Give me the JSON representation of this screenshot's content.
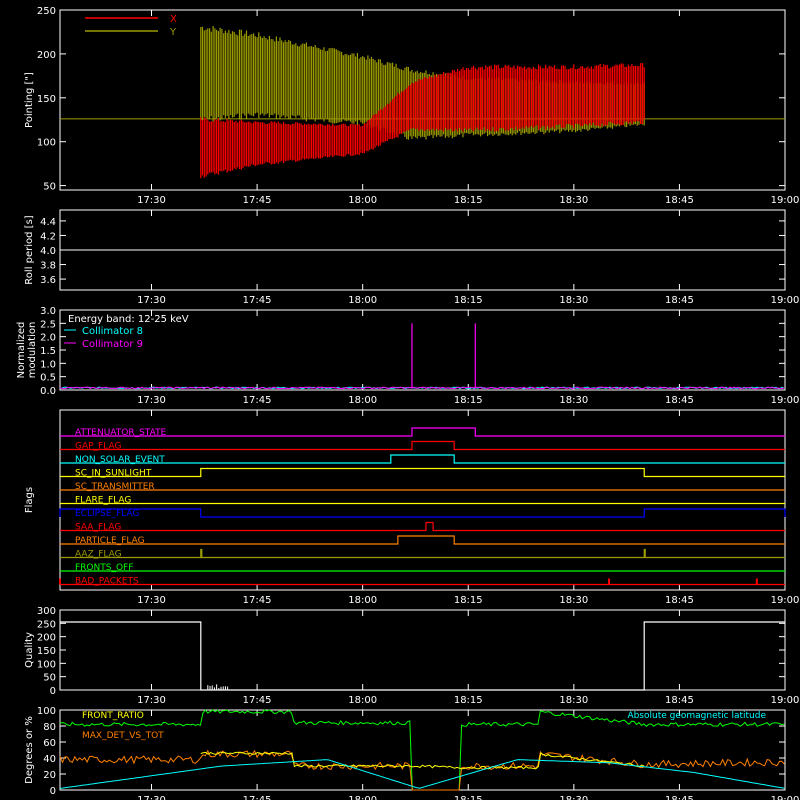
{
  "time_ticks": [
    "17:30",
    "17:45",
    "18:00",
    "18:15",
    "18:30",
    "18:45",
    "19:00"
  ],
  "chart_data": [
    {
      "type": "line",
      "ylabel": "Pointing [\"]",
      "ylim": [
        45,
        250
      ],
      "yticks": [
        "50",
        "100",
        "150",
        "200",
        "250"
      ],
      "x": [
        "17:17",
        "17:37",
        "17:45",
        "18:00",
        "18:07",
        "18:15",
        "18:30",
        "18:40",
        "19:00"
      ],
      "series": [
        {
          "name": "X",
          "color": "#ff0000",
          "min": [
            null,
            58,
            72,
            85,
            112,
            110,
            115,
            120,
            null
          ],
          "max": [
            null,
            128,
            124,
            120,
            170,
            188,
            188,
            190,
            null
          ],
          "baseline": 126
        },
        {
          "name": "Y",
          "color": "#9b9b00",
          "min": [
            null,
            120,
            127,
            118,
            100,
            105,
            110,
            118,
            null
          ],
          "max": [
            null,
            235,
            225,
            200,
            185,
            175,
            170,
            168,
            null
          ],
          "baseline": 126
        }
      ]
    },
    {
      "type": "line",
      "ylabel": "Roll period [s]",
      "ylim": [
        3.45,
        4.55
      ],
      "yticks": [
        "3.6",
        "3.8",
        "4.0",
        "4.2",
        "4.4"
      ],
      "series": [
        {
          "name": "",
          "color": "#ffffff",
          "value": 4.0
        }
      ]
    },
    {
      "type": "line",
      "ylabel_lines": [
        "Normalized",
        "modulation"
      ],
      "ylim": [
        0.0,
        3.0
      ],
      "yticks": [
        "0.0",
        "0.5",
        "1.0",
        "1.5",
        "2.0",
        "2.5",
        "3.0"
      ],
      "legend_title": "Energy band: 12-25 keV",
      "series": [
        {
          "name": "Collimator 8",
          "color": "#00ffff",
          "level": 0.05
        },
        {
          "name": "Collimator 9",
          "color": "#ff00ff",
          "level": 0.05,
          "spikes_x": [
            "18:07",
            "18:16"
          ],
          "spike_value": 2.5
        }
      ]
    },
    {
      "type": "line",
      "ylabel": "Flags",
      "flags": [
        {
          "name": "ATTENUATOR_STATE",
          "color": "#ff00ff",
          "high": [
            [
              "18:07",
              "18:16"
            ]
          ]
        },
        {
          "name": "GAP_FLAG",
          "color": "#ff0000",
          "high": [
            [
              "18:07",
              "18:13"
            ]
          ]
        },
        {
          "name": "NON_SOLAR_EVENT",
          "color": "#00ffff",
          "high": [
            [
              "18:04",
              "18:13"
            ]
          ]
        },
        {
          "name": "SC_IN_SUNLIGHT",
          "color": "#ffff00",
          "high": [
            [
              "17:37",
              "18:40"
            ]
          ]
        },
        {
          "name": "SC_TRANSMITTER",
          "color": "#ff8000",
          "high": []
        },
        {
          "name": "FLARE_FLAG",
          "color": "#ffff00",
          "high": []
        },
        {
          "name": "ECLIPSE_FLAG",
          "color": "#0000ff",
          "high": [
            [
              "17:17",
              "17:37"
            ],
            [
              "18:40",
              "19:00"
            ]
          ]
        },
        {
          "name": "SAA_FLAG",
          "color": "#ff0000",
          "high": [
            [
              "18:09",
              "18:10"
            ]
          ]
        },
        {
          "name": "PARTICLE_FLAG",
          "color": "#ff8000",
          "high": [
            [
              "18:05",
              "18:13"
            ]
          ]
        },
        {
          "name": "AAZ_FLAG",
          "color": "#9b9b00",
          "high": [
            [
              "17:37",
              "17:37"
            ],
            [
              "18:40",
              "18:40"
            ]
          ]
        },
        {
          "name": "FRONTS_OFF",
          "color": "#00ff00",
          "high": []
        },
        {
          "name": "BAD_PACKETS",
          "color": "#ff0000",
          "ticks_x": [
            "17:17",
            "18:35",
            "18:56"
          ]
        }
      ]
    },
    {
      "type": "line",
      "ylabel": "Quality",
      "ylim": [
        0,
        300
      ],
      "yticks": [
        "0",
        "50",
        "100",
        "150",
        "200",
        "250",
        "300"
      ],
      "x": [
        "17:17",
        "17:37",
        "17:37",
        "18:40",
        "18:40",
        "19:00"
      ],
      "values": [
        255,
        255,
        0,
        0,
        255,
        255
      ]
    },
    {
      "type": "line",
      "ylabel": "Degrees or %",
      "ylim": [
        0,
        100
      ],
      "yticks": [
        "0",
        "20",
        "40",
        "60",
        "80",
        "100"
      ],
      "legend_right": "Absolute geomagnetic latitude",
      "series": [
        {
          "name": "FRONT_RATIO",
          "color": "#00ff00",
          "x": [
            "17:17",
            "17:37",
            "17:37",
            "17:50",
            "17:50",
            "18:07",
            "18:07",
            "18:14",
            "18:14",
            "18:25",
            "18:25",
            "18:40",
            "19:00"
          ],
          "values": [
            82,
            82,
            98,
            98,
            84,
            84,
            0,
            0,
            82,
            82,
            98,
            82,
            82
          ]
        },
        {
          "name": "MAX_DET_VS_TOT",
          "color": "#ff8000",
          "x": [
            "17:17",
            "17:37",
            "17:37",
            "17:50",
            "17:50",
            "18:07",
            "18:07",
            "18:14",
            "18:14",
            "18:25",
            "18:25",
            "18:40",
            "19:00"
          ],
          "values": [
            38,
            38,
            45,
            45,
            30,
            30,
            0,
            0,
            30,
            30,
            45,
            32,
            35
          ]
        },
        {
          "name": "",
          "color": "#ffff00",
          "x": [
            "17:37",
            "17:50",
            "17:50",
            "18:07",
            "18:14",
            "18:25",
            "18:25",
            "18:40"
          ],
          "values": [
            46,
            46,
            30,
            30,
            28,
            28,
            45,
            30
          ]
        },
        {
          "name": "Absolute geomagnetic latitude",
          "color": "#00ffff",
          "x": [
            "17:17",
            "17:40",
            "17:55",
            "18:08",
            "18:22",
            "18:35",
            "18:47",
            "19:00"
          ],
          "values": [
            2,
            30,
            38,
            2,
            38,
            34,
            22,
            2
          ]
        }
      ]
    }
  ]
}
